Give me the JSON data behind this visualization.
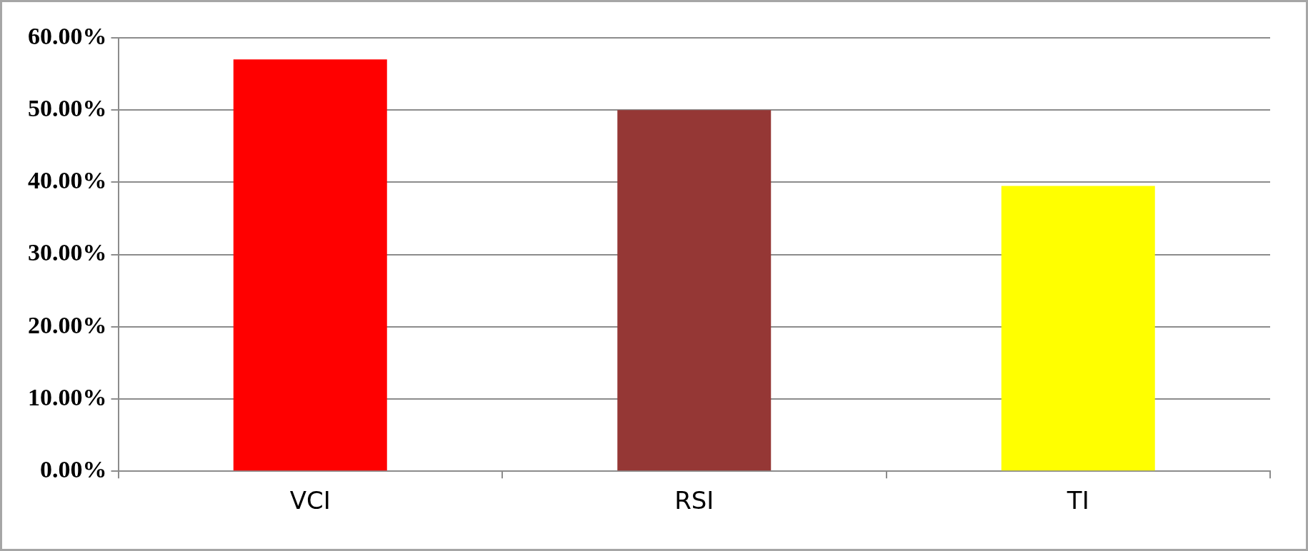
{
  "chart_data": {
    "type": "bar",
    "categories": [
      "VCI",
      "RSI",
      "TI"
    ],
    "values": [
      57,
      50,
      39.5
    ],
    "colors": [
      "#ff0000",
      "#953735",
      "#ffff00"
    ],
    "ylim": [
      0,
      60
    ],
    "yticks": [
      {
        "value": 0,
        "label": "0.00%"
      },
      {
        "value": 10,
        "label": "10.00%"
      },
      {
        "value": 20,
        "label": "20.00%"
      },
      {
        "value": 30,
        "label": "30.00%"
      },
      {
        "value": 40,
        "label": "40.00%"
      },
      {
        "value": 50,
        "label": "50.00%"
      },
      {
        "value": 60,
        "label": "60.00%"
      }
    ],
    "grid": "y",
    "legend": false
  }
}
